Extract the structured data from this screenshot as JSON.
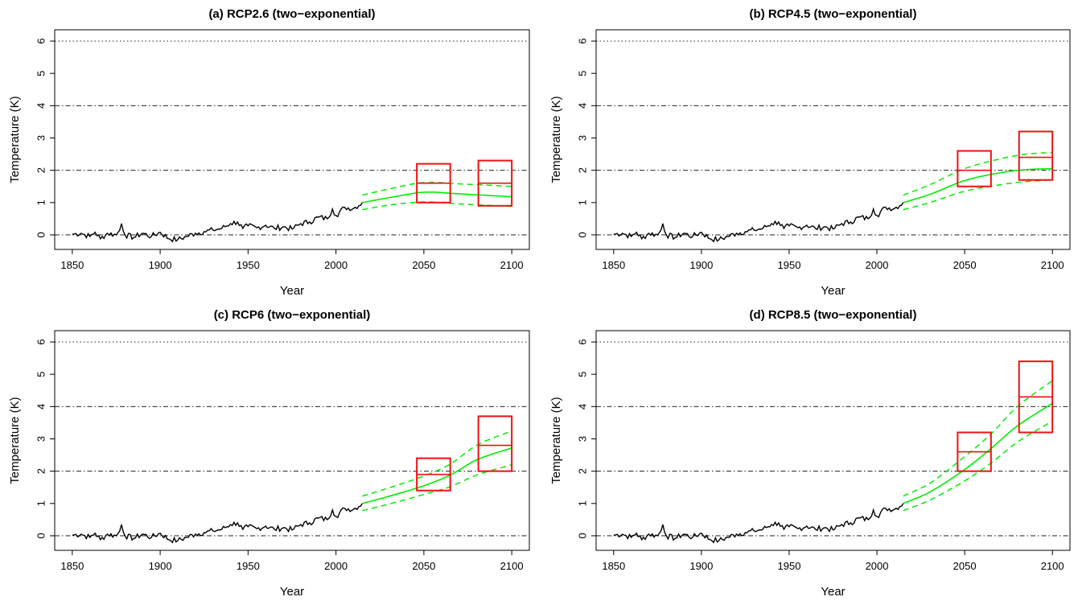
{
  "colors": {
    "observed": "#000000",
    "projection": "#00ee00",
    "box": "#ee1111",
    "reference_line": "#000000"
  },
  "chart_data": [
    {
      "type": "line",
      "title": "(a) RCP2.6 (two−exponential)",
      "xlabel": "Year",
      "ylabel": "Temperature (K)",
      "xlim": [
        1850,
        2100
      ],
      "ylim": [
        0,
        6
      ],
      "xticks": [
        "1850",
        "1900",
        "1950",
        "2000",
        "2050",
        "2100"
      ],
      "yticks": [
        "0",
        "1",
        "2",
        "3",
        "4",
        "5",
        "6"
      ],
      "grid": false,
      "projection": {
        "x": [
          2015,
          2030,
          2050,
          2070,
          2100
        ],
        "central": [
          1.0,
          1.15,
          1.32,
          1.27,
          1.18
        ],
        "lower": [
          0.78,
          0.92,
          1.02,
          0.96,
          0.88
        ],
        "upper": [
          1.23,
          1.42,
          1.62,
          1.58,
          1.5
        ]
      },
      "boxes": [
        {
          "x_range": [
            2046,
            2065
          ],
          "low": 1.0,
          "median": 1.6,
          "high": 2.2
        },
        {
          "x_range": [
            2081,
            2100
          ],
          "low": 0.9,
          "median": 1.6,
          "high": 2.3
        }
      ]
    },
    {
      "type": "line",
      "title": "(b) RCP4.5 (two−exponential)",
      "xlabel": "Year",
      "ylabel": "Temperature (K)",
      "xlim": [
        1850,
        2100
      ],
      "ylim": [
        0,
        6
      ],
      "xticks": [
        "1850",
        "1900",
        "1950",
        "2000",
        "2050",
        "2100"
      ],
      "yticks": [
        "0",
        "1",
        "2",
        "3",
        "4",
        "5",
        "6"
      ],
      "grid": false,
      "projection": {
        "x": [
          2015,
          2030,
          2050,
          2070,
          2085,
          2100
        ],
        "central": [
          1.0,
          1.25,
          1.68,
          1.92,
          2.02,
          2.05
        ],
        "lower": [
          0.78,
          1.0,
          1.35,
          1.55,
          1.65,
          1.7
        ],
        "upper": [
          1.23,
          1.55,
          2.05,
          2.35,
          2.5,
          2.55
        ]
      },
      "boxes": [
        {
          "x_range": [
            2046,
            2065
          ],
          "low": 1.5,
          "median": 2.0,
          "high": 2.6
        },
        {
          "x_range": [
            2081,
            2100
          ],
          "low": 1.7,
          "median": 2.4,
          "high": 3.2
        }
      ]
    },
    {
      "type": "line",
      "title": "(c) RCP6 (two−exponential)",
      "xlabel": "Year",
      "ylabel": "Temperature (K)",
      "xlim": [
        1850,
        2100
      ],
      "ylim": [
        0,
        6
      ],
      "xticks": [
        "1850",
        "1900",
        "1950",
        "2000",
        "2050",
        "2100"
      ],
      "yticks": [
        "0",
        "1",
        "2",
        "3",
        "4",
        "5",
        "6"
      ],
      "grid": false,
      "projection": {
        "x": [
          2015,
          2030,
          2050,
          2065,
          2080,
          2100
        ],
        "central": [
          1.0,
          1.22,
          1.55,
          1.88,
          2.35,
          2.72
        ],
        "lower": [
          0.78,
          0.98,
          1.28,
          1.52,
          1.88,
          2.2
        ],
        "upper": [
          1.23,
          1.48,
          1.85,
          2.22,
          2.8,
          3.25
        ]
      },
      "boxes": [
        {
          "x_range": [
            2046,
            2065
          ],
          "low": 1.4,
          "median": 1.9,
          "high": 2.4
        },
        {
          "x_range": [
            2081,
            2100
          ],
          "low": 2.0,
          "median": 2.8,
          "high": 3.7
        }
      ]
    },
    {
      "type": "line",
      "title": "(d) RCP8.5 (two−exponential)",
      "xlabel": "Year",
      "ylabel": "Temperature (K)",
      "xlim": [
        1850,
        2100
      ],
      "ylim": [
        0,
        6
      ],
      "xticks": [
        "1850",
        "1900",
        "1950",
        "2000",
        "2050",
        "2100"
      ],
      "yticks": [
        "0",
        "1",
        "2",
        "3",
        "4",
        "5",
        "6"
      ],
      "grid": false,
      "projection": {
        "x": [
          2015,
          2030,
          2050,
          2065,
          2080,
          2100
        ],
        "central": [
          1.0,
          1.35,
          2.05,
          2.7,
          3.4,
          4.1
        ],
        "lower": [
          0.78,
          1.1,
          1.7,
          2.25,
          2.9,
          3.55
        ],
        "upper": [
          1.23,
          1.62,
          2.45,
          3.15,
          4.0,
          4.8
        ]
      },
      "boxes": [
        {
          "x_range": [
            2046,
            2065
          ],
          "low": 2.0,
          "median": 2.6,
          "high": 3.2
        },
        {
          "x_range": [
            2081,
            2100
          ],
          "low": 3.2,
          "median": 4.3,
          "high": 5.4
        }
      ]
    }
  ],
  "observed": {
    "x": [
      1850,
      1855,
      1860,
      1863,
      1866,
      1870,
      1875,
      1877,
      1878,
      1880,
      1885,
      1890,
      1895,
      1900,
      1905,
      1910,
      1915,
      1920,
      1925,
      1930,
      1935,
      1940,
      1944,
      1947,
      1950,
      1955,
      1960,
      1965,
      1970,
      1975,
      1980,
      1985,
      1990,
      1995,
      1998,
      2000,
      2005,
      2010,
      2015
    ],
    "y": [
      0.02,
      0.05,
      -0.05,
      0.08,
      -0.12,
      0.05,
      0.0,
      0.15,
      0.35,
      0.0,
      -0.08,
      0.05,
      -0.05,
      0.08,
      -0.12,
      -0.15,
      -0.05,
      0.05,
      0.1,
      0.15,
      0.2,
      0.35,
      0.4,
      0.2,
      0.28,
      0.22,
      0.3,
      0.2,
      0.25,
      0.18,
      0.35,
      0.4,
      0.55,
      0.5,
      0.8,
      0.6,
      0.85,
      0.82,
      1.0
    ]
  }
}
